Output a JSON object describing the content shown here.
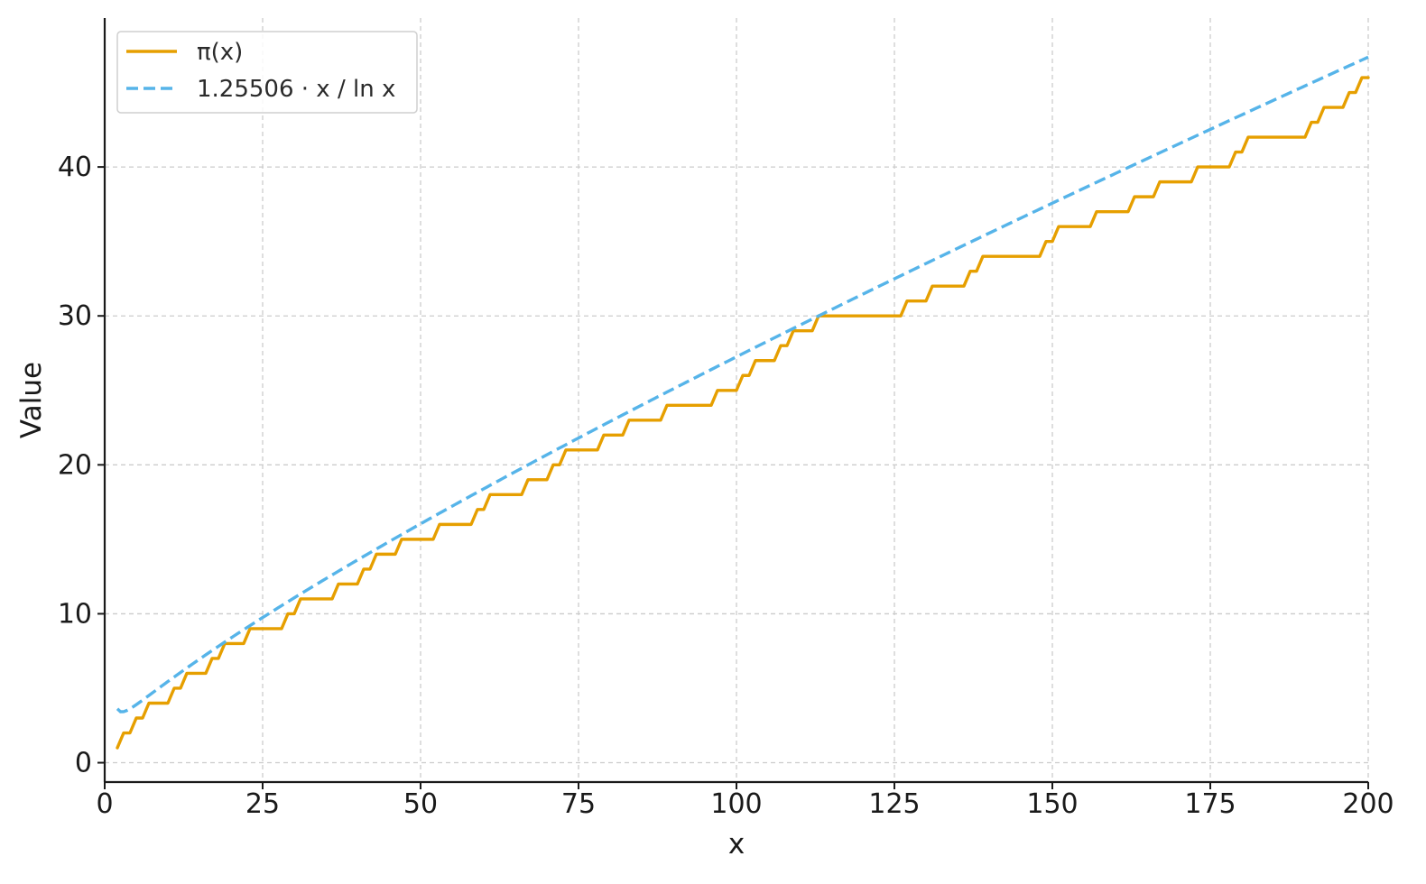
{
  "chart_data": {
    "type": "line",
    "xlabel": "x",
    "ylabel": "Value",
    "xlim": [
      0,
      200
    ],
    "ylim": [
      -1.3,
      50
    ],
    "xticks": [
      0,
      25,
      50,
      75,
      100,
      125,
      150,
      175,
      200
    ],
    "yticks": [
      0,
      10,
      20,
      30,
      40
    ],
    "grid": true,
    "legend_position": "top-left",
    "series": [
      {
        "name": "π(x)",
        "color": "#E69F00",
        "line_style": "solid",
        "step": true,
        "x": [
          2,
          3,
          5,
          7,
          11,
          13,
          17,
          19,
          23,
          29,
          31,
          37,
          41,
          43,
          47,
          53,
          59,
          61,
          67,
          71,
          73,
          79,
          83,
          89,
          97,
          101,
          103,
          107,
          109,
          113,
          127,
          131,
          137,
          139,
          149,
          151,
          157,
          163,
          167,
          173,
          179,
          181,
          191,
          193,
          197,
          199,
          200
        ],
        "y": [
          1,
          2,
          3,
          4,
          5,
          6,
          7,
          8,
          9,
          10,
          11,
          12,
          13,
          14,
          15,
          16,
          17,
          18,
          19,
          20,
          21,
          22,
          23,
          24,
          25,
          26,
          27,
          28,
          29,
          30,
          31,
          32,
          33,
          34,
          35,
          36,
          37,
          38,
          39,
          40,
          41,
          42,
          43,
          44,
          45,
          46,
          46
        ]
      },
      {
        "name": "1.25506 · x / ln x",
        "color": "#56B4E9",
        "line_style": "dashed",
        "function": "1.25506 * x / ln(x)",
        "x_range": [
          2,
          200
        ]
      }
    ]
  }
}
